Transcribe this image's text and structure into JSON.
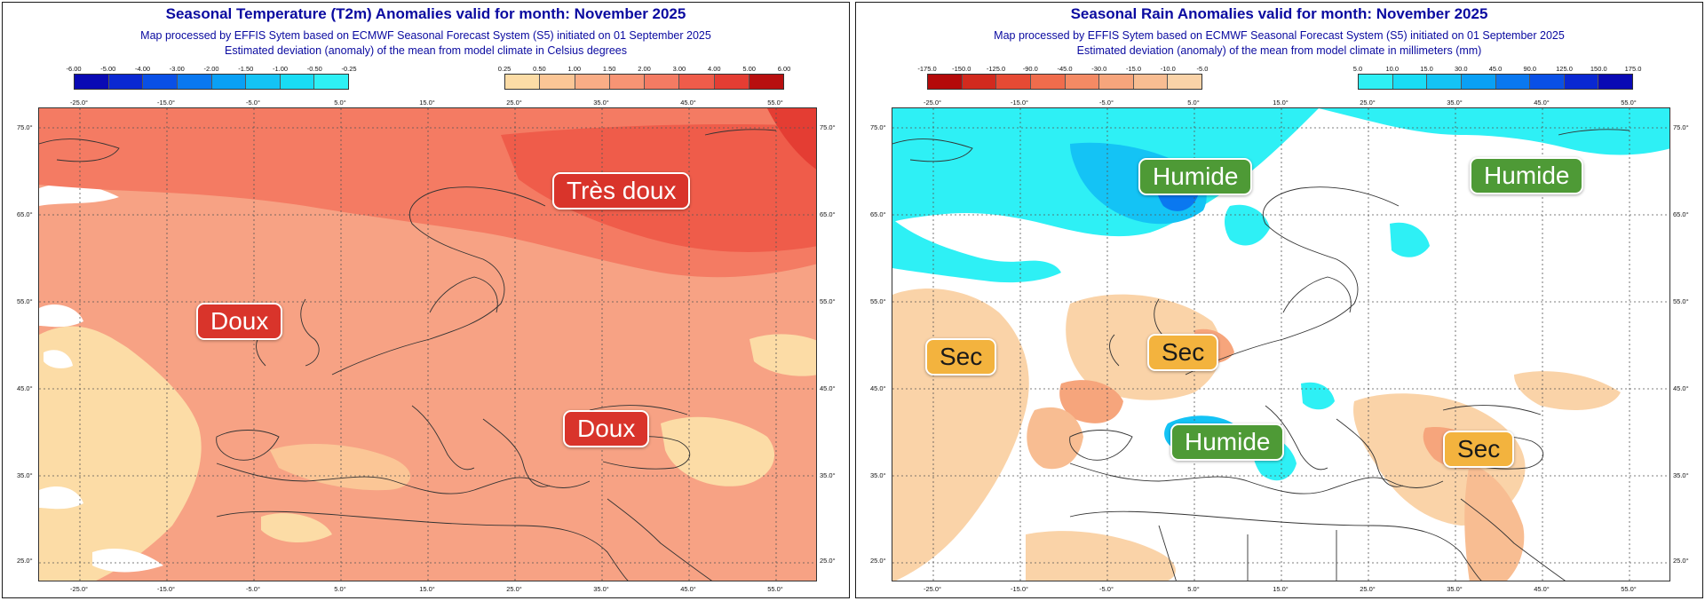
{
  "temperature": {
    "title": "Seasonal Temperature (T2m) Anomalies valid for month: November 2025",
    "subtitle1": "Map processed by EFFIS Sytem based on ECMWF Seasonal Forecast System (S5) initiated on 01 September 2025",
    "subtitle2": "Estimated deviation (anomaly) of the mean from model climate in Celsius degrees",
    "legend_cold": {
      "ticks": [
        "-6.00",
        "-5.00",
        "-4.00",
        "-3.00",
        "-2.00",
        "-1.50",
        "-1.00",
        "-0.50",
        "-0.25"
      ],
      "colors": [
        "#0a0ab4",
        "#0a28d2",
        "#0a50e6",
        "#0a78f0",
        "#0aa0f5",
        "#14c3f5",
        "#19dcf5",
        "#2ef0f5"
      ]
    },
    "legend_warm": {
      "ticks": [
        "0.25",
        "0.50",
        "1.00",
        "1.50",
        "2.00",
        "3.00",
        "4.00",
        "5.00",
        "6.00"
      ],
      "colors": [
        "#fcdca6",
        "#fbc696",
        "#f9ad86",
        "#f79474",
        "#f47b63",
        "#ef5c4a",
        "#e43d33",
        "#b80f0f"
      ]
    },
    "labels": {
      "tres_doux": "Très doux",
      "doux_west": "Doux",
      "doux_east": "Doux"
    }
  },
  "rain": {
    "title": "Seasonal Rain Anomalies valid for month: November 2025",
    "subtitle1": "Map processed by EFFIS Sytem based on ECMWF Seasonal Forecast System (S5) initiated on 01 September 2025",
    "subtitle2": "Estimated deviation (anomaly) of the mean from model climate in millimeters (mm)",
    "legend_dry": {
      "ticks": [
        "-175.0",
        "-150.0",
        "-125.0",
        "-90.0",
        "-45.0",
        "-30.0",
        "-15.0",
        "-10.0",
        "-5.0"
      ],
      "colors": [
        "#b40a0a",
        "#d22a1e",
        "#e64a34",
        "#f06c4c",
        "#f48a64",
        "#f6a57c",
        "#f8bd92",
        "#fad3a8"
      ]
    },
    "legend_wet": {
      "ticks": [
        "5.0",
        "10.0",
        "15.0",
        "30.0",
        "45.0",
        "90.0",
        "125.0",
        "150.0",
        "175.0"
      ],
      "colors": [
        "#2ef0f5",
        "#19dcf5",
        "#14c3f5",
        "#0aa0f5",
        "#0a78f0",
        "#0a50e6",
        "#0a28d2",
        "#0a0ab4"
      ]
    },
    "labels": {
      "humide_north": "Humide",
      "humide_ne": "Humide",
      "humide_med": "Humide",
      "sec_atlantic": "Sec",
      "sec_alps": "Sec",
      "sec_east": "Sec"
    }
  },
  "axes": {
    "lat_labels": [
      "75.0°",
      "65.0°",
      "55.0°",
      "45.0°",
      "35.0°",
      "25.0°"
    ],
    "lon_labels": [
      "-25.0°",
      "-15.0°",
      "-5.0°",
      "5.0°",
      "15.0°",
      "25.0°",
      "35.0°",
      "45.0°",
      "55.0°"
    ]
  }
}
